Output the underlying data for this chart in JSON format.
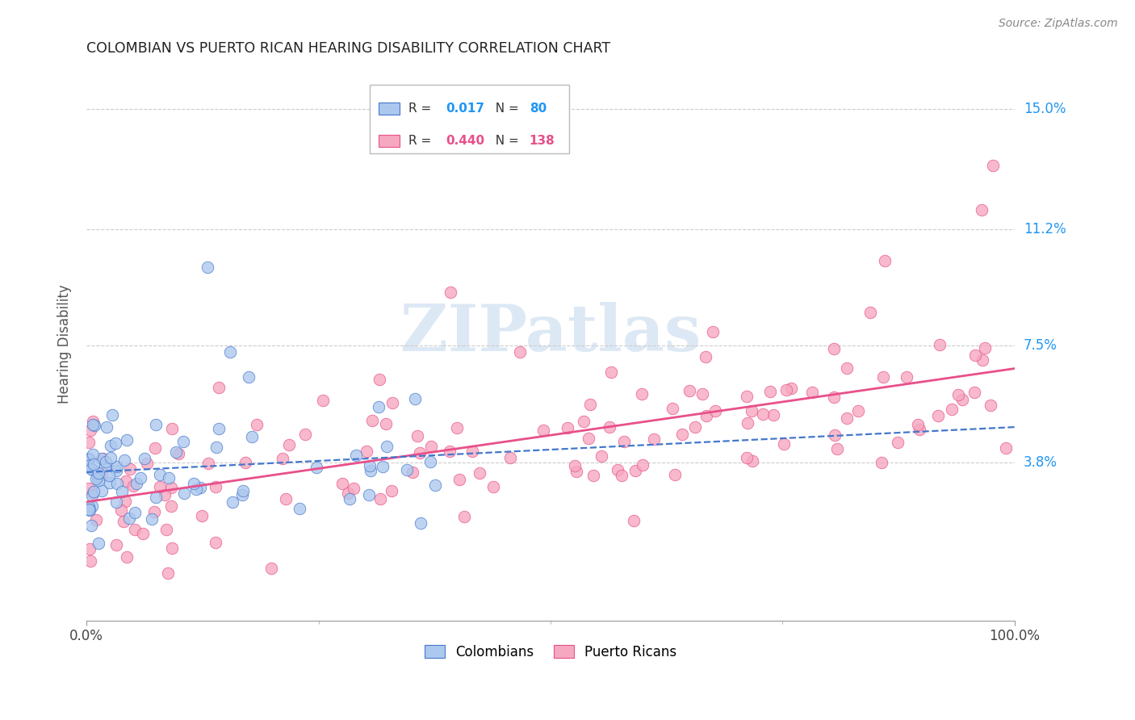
{
  "title": "COLOMBIAN VS PUERTO RICAN HEARING DISABILITY CORRELATION CHART",
  "source": "Source: ZipAtlas.com",
  "ylabel": "Hearing Disability",
  "ytick_labels": [
    "3.8%",
    "7.5%",
    "11.2%",
    "15.0%"
  ],
  "ytick_values": [
    0.038,
    0.075,
    0.112,
    0.15
  ],
  "xlim": [
    0.0,
    1.0
  ],
  "ylim": [
    -0.012,
    0.163
  ],
  "background_color": "#ffffff",
  "colombian_color": "#adc8ee",
  "puertoRican_color": "#f5a8bf",
  "colombian_line_color": "#4477cc",
  "puertoRican_line_color": "#e8508a",
  "grid_color": "#cccccc",
  "col_R": "0.017",
  "col_N": "80",
  "pr_R": "0.440",
  "pr_N": "138",
  "label_color_blue": "#2196F3",
  "label_color_pink": "#e8508a",
  "watermark_color": "#dde8f5"
}
